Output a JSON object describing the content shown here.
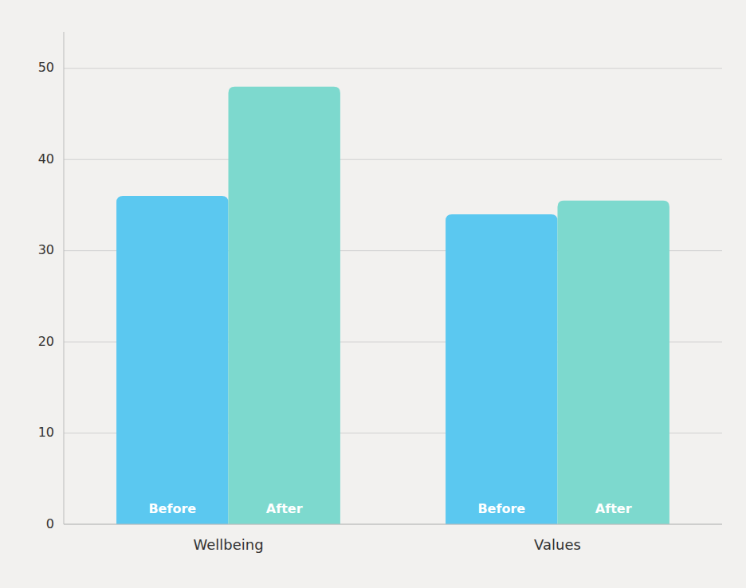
{
  "chart_data": {
    "type": "bar",
    "categories": [
      "Wellbeing",
      "Values"
    ],
    "series": [
      {
        "name": "Before",
        "color": "#5BC8F0",
        "values": [
          36,
          34
        ]
      },
      {
        "name": "After",
        "color": "#7DD9CE",
        "values": [
          48,
          35.5
        ]
      }
    ],
    "ylim": [
      0,
      54
    ],
    "yticks": [
      0,
      10,
      20,
      30,
      40,
      50
    ],
    "grid": true
  }
}
